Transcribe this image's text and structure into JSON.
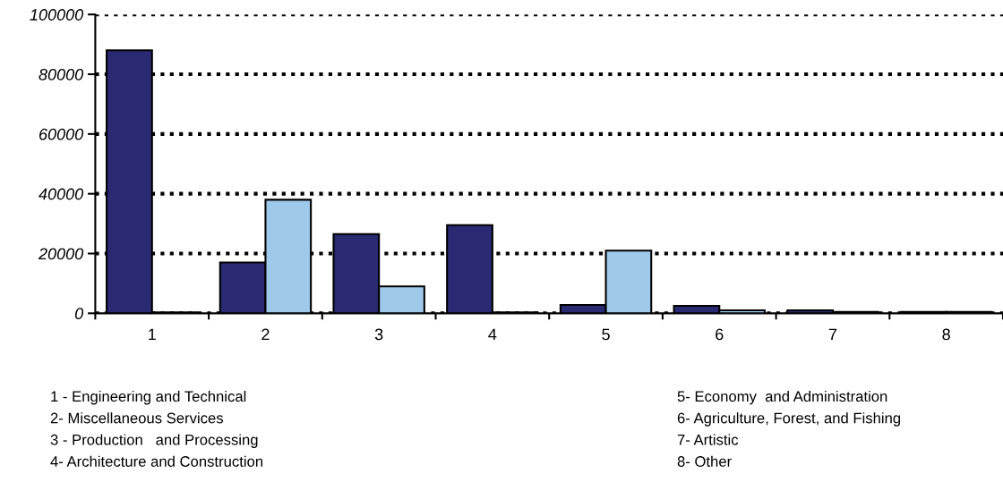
{
  "chart_data": {
    "type": "bar",
    "categories": [
      "1",
      "2",
      "3",
      "4",
      "5",
      "6",
      "7",
      "8"
    ],
    "series": [
      {
        "color": "#2a2a72",
        "values": [
          88000,
          17000,
          26500,
          29500,
          2800,
          2500,
          1000,
          500
        ]
      },
      {
        "color": "#9ec9ea",
        "values": [
          300,
          38000,
          9000,
          300,
          21000,
          1000,
          500,
          500
        ]
      }
    ],
    "ylim": [
      0,
      100000
    ],
    "yticks": [
      0,
      20000,
      40000,
      60000,
      80000,
      100000
    ],
    "grid": "y",
    "legend": false,
    "annotations": [
      "1 - Engineering and Technical",
      "2- Miscellaneous Services",
      "3 - Production   and Processing",
      "4- Architecture and Construction",
      "5- Economy  and Administration",
      "6- Agriculture, Forest, and Fishing",
      "7- Artistic",
      "8- Other"
    ]
  }
}
